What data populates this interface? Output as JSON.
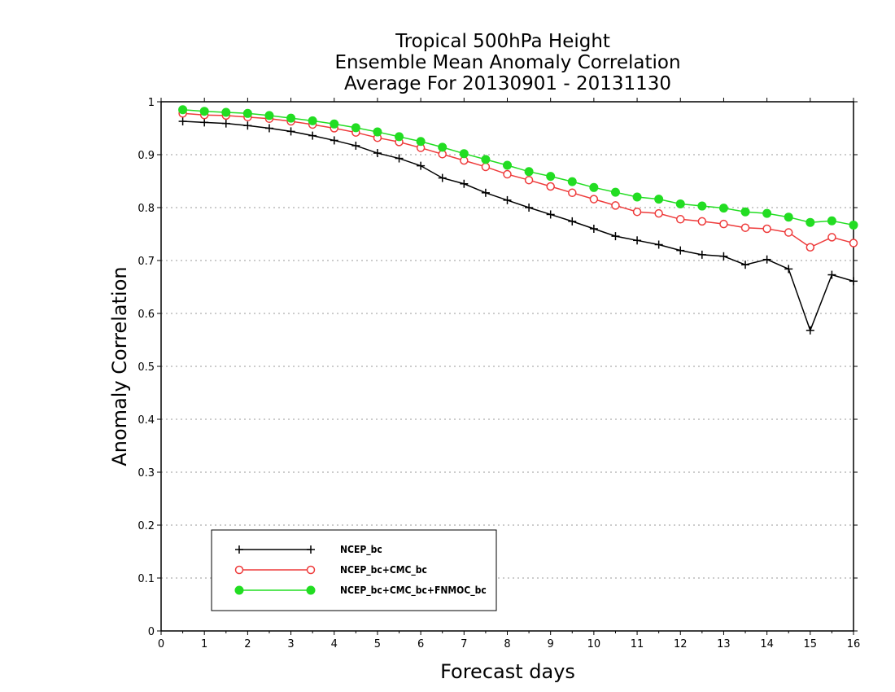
{
  "chart_data": {
    "type": "line",
    "title": [
      "Tropical 500hPa Height",
      "Ensemble Mean Anomaly Correlation",
      "Average For 20130901 - 20131130"
    ],
    "xlabel": "Forecast days",
    "ylabel": "Anomaly Correlation",
    "xlim": [
      0,
      16
    ],
    "ylim": [
      0,
      1
    ],
    "x_ticks": [
      "0",
      "1",
      "2",
      "3",
      "4",
      "5",
      "6",
      "7",
      "8",
      "9",
      "10",
      "11",
      "12",
      "13",
      "14",
      "15",
      "16"
    ],
    "y_ticks": [
      "0",
      "0.1",
      "0.2",
      "0.3",
      "0.4",
      "0.5",
      "0.6",
      "0.7",
      "0.8",
      "0.9",
      "1"
    ],
    "grid": "horizontal dotted",
    "legend_position": "bottom-left",
    "x": [
      0.5,
      1,
      1.5,
      2,
      2.5,
      3,
      3.5,
      4,
      4.5,
      5,
      5.5,
      6,
      6.5,
      7,
      7.5,
      8,
      8.5,
      9,
      9.5,
      10,
      10.5,
      11,
      11.5,
      12,
      12.5,
      13,
      13.5,
      14,
      14.5,
      15,
      15.5,
      16
    ],
    "series": [
      {
        "name": "NCEP_bc",
        "color": "#000000",
        "marker": "plus",
        "values": [
          0.963,
          0.961,
          0.959,
          0.955,
          0.95,
          0.944,
          0.936,
          0.927,
          0.917,
          0.903,
          0.893,
          0.879,
          0.856,
          0.845,
          0.828,
          0.814,
          0.8,
          0.787,
          0.774,
          0.76,
          0.746,
          0.738,
          0.73,
          0.719,
          0.711,
          0.708,
          0.692,
          0.702,
          0.684,
          0.568,
          0.673,
          0.661
        ]
      },
      {
        "name": "NCEP_bc+CMC_bc",
        "color": "#ee3b3b",
        "marker": "open-circle",
        "values": [
          0.978,
          0.975,
          0.974,
          0.971,
          0.968,
          0.963,
          0.957,
          0.95,
          0.942,
          0.932,
          0.924,
          0.913,
          0.901,
          0.889,
          0.877,
          0.863,
          0.852,
          0.84,
          0.828,
          0.816,
          0.804,
          0.792,
          0.789,
          0.778,
          0.774,
          0.769,
          0.762,
          0.76,
          0.753,
          0.725,
          0.744,
          0.733
        ]
      },
      {
        "name": "NCEP_bc+CMC_bc+FNMOC_bc",
        "color": "#22dd22",
        "marker": "filled-circle",
        "values": [
          0.985,
          0.982,
          0.98,
          0.978,
          0.974,
          0.969,
          0.964,
          0.958,
          0.951,
          0.943,
          0.934,
          0.925,
          0.914,
          0.902,
          0.891,
          0.88,
          0.868,
          0.859,
          0.849,
          0.838,
          0.829,
          0.82,
          0.816,
          0.807,
          0.803,
          0.799,
          0.792,
          0.789,
          0.782,
          0.772,
          0.775,
          0.767
        ]
      }
    ]
  }
}
